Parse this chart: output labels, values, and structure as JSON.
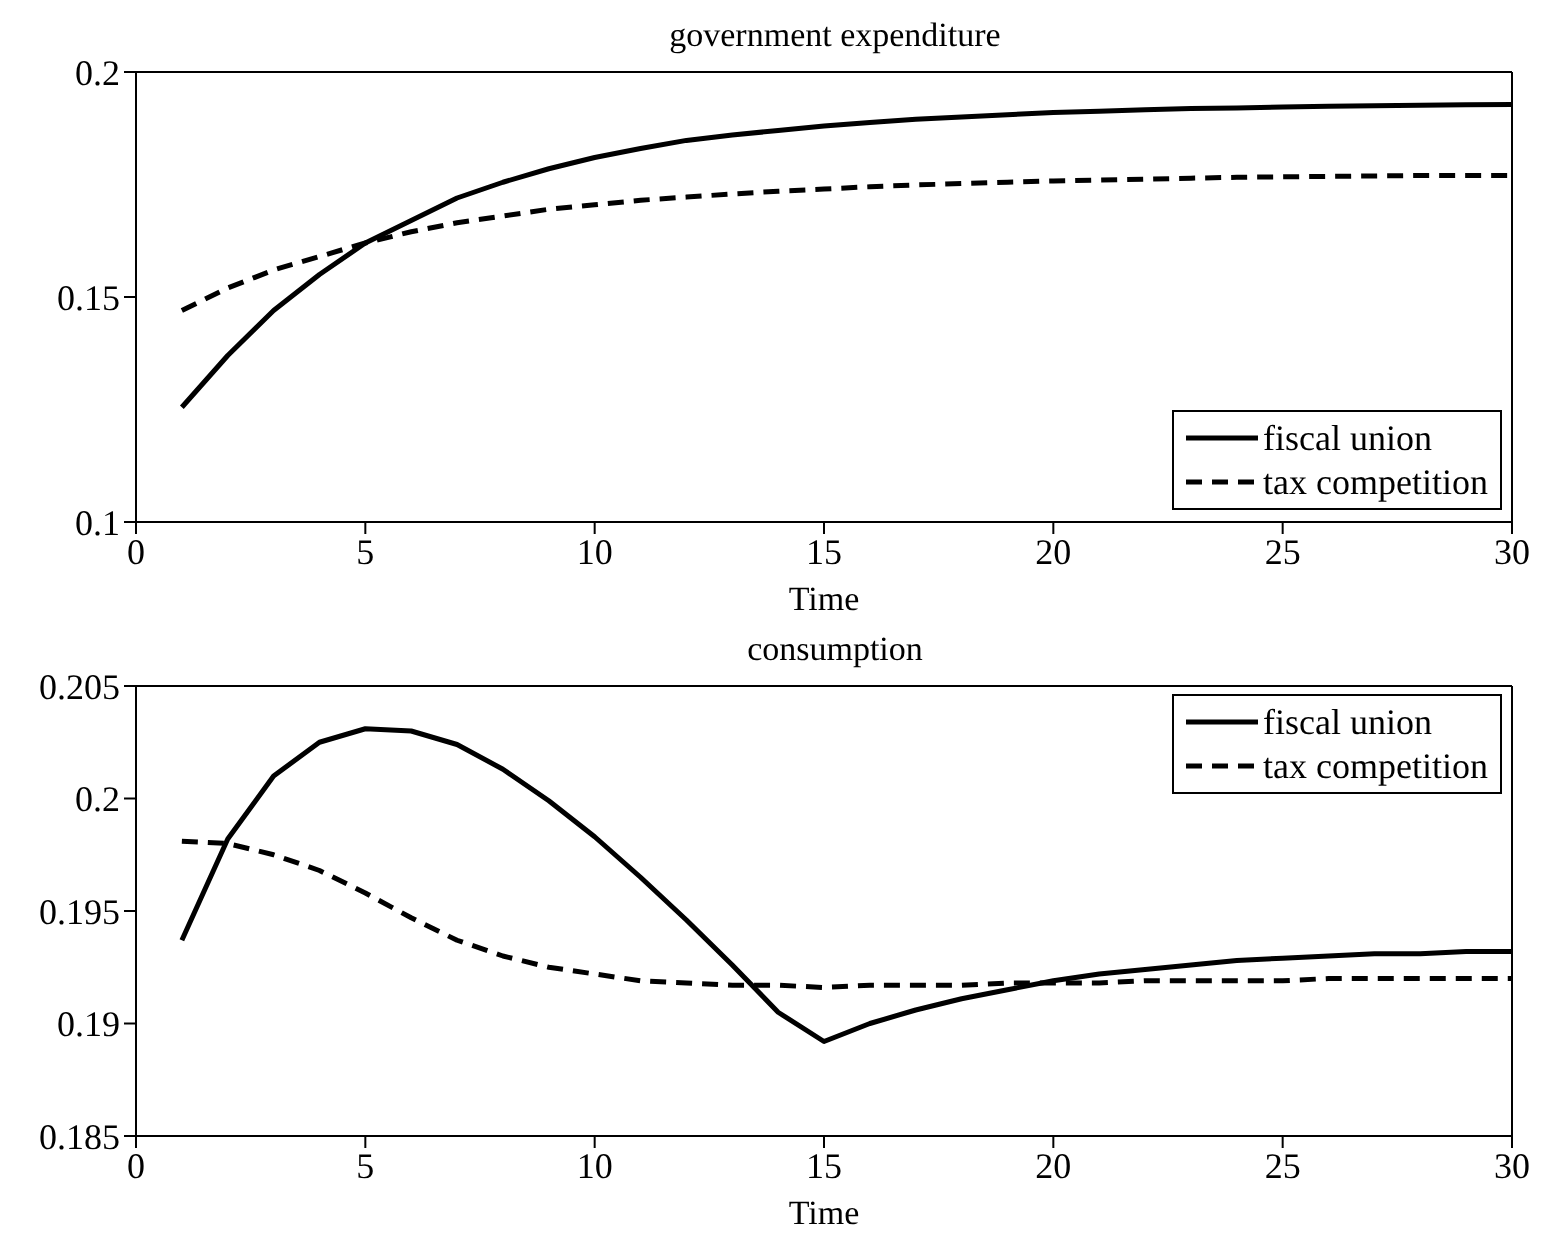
{
  "chart_data": [
    {
      "type": "line",
      "title": "government expenditure",
      "xlabel": "Time",
      "x": [
        1,
        2,
        3,
        4,
        5,
        6,
        7,
        8,
        9,
        10,
        11,
        12,
        13,
        14,
        15,
        16,
        17,
        18,
        19,
        20,
        21,
        22,
        23,
        24,
        25,
        26,
        27,
        28,
        29,
        30
      ],
      "xlim": [
        0,
        30
      ],
      "xticks": [
        0,
        5,
        10,
        15,
        20,
        25,
        30
      ],
      "ylim": [
        0.1,
        0.2
      ],
      "yticks": [
        0.1,
        0.15,
        0.2
      ],
      "grid": false,
      "legend": "bottom right",
      "marker": "none",
      "series": [
        {
          "name": "fiscal union",
          "color": "#000000",
          "line_style": "solid",
          "values": [
            0.1255,
            0.137,
            0.147,
            0.155,
            0.162,
            0.167,
            0.172,
            0.1755,
            0.1785,
            0.181,
            0.183,
            0.1848,
            0.186,
            0.187,
            0.188,
            0.1888,
            0.1895,
            0.19,
            0.1905,
            0.191,
            0.1913,
            0.1916,
            0.1919,
            0.192,
            0.1922,
            0.1924,
            0.1925,
            0.1926,
            0.1927,
            0.1928
          ]
        },
        {
          "name": "tax competition",
          "color": "#000000",
          "line_style": "dashed",
          "values": [
            0.147,
            0.152,
            0.156,
            0.159,
            0.162,
            0.1645,
            0.1665,
            0.168,
            0.1695,
            0.1705,
            0.1715,
            0.1722,
            0.1729,
            0.1735,
            0.174,
            0.1745,
            0.1749,
            0.1752,
            0.1755,
            0.1758,
            0.176,
            0.1762,
            0.1764,
            0.1766,
            0.1767,
            0.1768,
            0.1769,
            0.177,
            0.177,
            0.177
          ]
        }
      ]
    },
    {
      "type": "line",
      "title": "consumption",
      "xlabel": "Time",
      "x": [
        1,
        2,
        3,
        4,
        5,
        6,
        7,
        8,
        9,
        10,
        11,
        12,
        13,
        14,
        15,
        16,
        17,
        18,
        19,
        20,
        21,
        22,
        23,
        24,
        25,
        26,
        27,
        28,
        29,
        30
      ],
      "xlim": [
        0,
        30
      ],
      "xticks": [
        0,
        5,
        10,
        15,
        20,
        25,
        30
      ],
      "ylim": [
        0.185,
        0.205
      ],
      "yticks": [
        0.185,
        0.19,
        0.195,
        0.2,
        0.205
      ],
      "grid": false,
      "legend": "top right",
      "marker": "none",
      "series": [
        {
          "name": "fiscal union",
          "color": "#000000",
          "line_style": "solid",
          "values": [
            0.1937,
            0.1982,
            0.201,
            0.2025,
            0.2031,
            0.203,
            0.2024,
            0.2013,
            0.1999,
            0.1983,
            0.1965,
            0.1946,
            0.1926,
            0.1905,
            0.1892,
            0.19,
            0.1906,
            0.1911,
            0.1915,
            0.1919,
            0.1922,
            0.1924,
            0.1926,
            0.1928,
            0.1929,
            0.193,
            0.1931,
            0.1931,
            0.1932,
            0.1932
          ]
        },
        {
          "name": "tax competition",
          "color": "#000000",
          "line_style": "dashed",
          "values": [
            0.1981,
            0.198,
            0.1975,
            0.1968,
            0.1958,
            0.1947,
            0.1937,
            0.193,
            0.1925,
            0.1922,
            0.1919,
            0.1918,
            0.1917,
            0.1917,
            0.1916,
            0.1917,
            0.1917,
            0.1917,
            0.1918,
            0.1918,
            0.1918,
            0.1919,
            0.1919,
            0.1919,
            0.1919,
            0.192,
            0.192,
            0.192,
            0.192,
            0.192
          ]
        }
      ]
    }
  ]
}
